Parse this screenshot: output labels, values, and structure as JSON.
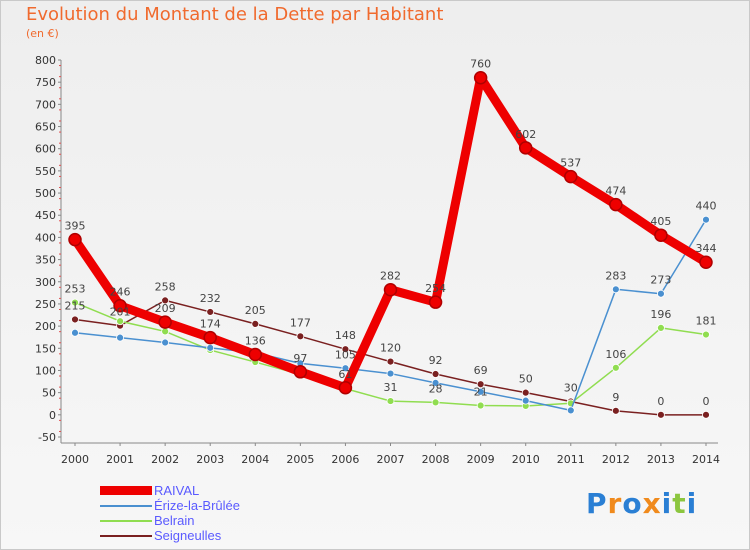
{
  "title": "Evolution du Montant de la Dette par Habitant",
  "subtitle": "(en €)",
  "logo_text": "Proxiti",
  "chart_data": {
    "type": "line",
    "title": "Evolution du Montant de la Dette par Habitant",
    "ylabel": "(en €)",
    "xlabel": "",
    "categories": [
      "2000",
      "2001",
      "2002",
      "2003",
      "2004",
      "2005",
      "2006",
      "2007",
      "2008",
      "2009",
      "2010",
      "2011",
      "2012",
      "2013",
      "2014"
    ],
    "ylim": [
      -50,
      800
    ],
    "yticks": [
      -50,
      0,
      50,
      100,
      150,
      200,
      250,
      300,
      350,
      400,
      450,
      500,
      550,
      600,
      650,
      700,
      750,
      800
    ],
    "grid": false,
    "legend_position": "bottom-left",
    "series": [
      {
        "name": "RAIVAL",
        "color": "#ee0000",
        "values": [
          395,
          246,
          209,
          174,
          136,
          97,
          61,
          282,
          254,
          760,
          602,
          537,
          474,
          405,
          344
        ],
        "labels": [
          "395",
          "246",
          "209",
          "174",
          "136",
          "97",
          "61",
          "282",
          "254",
          "760",
          "602",
          "537",
          "474",
          "405",
          "344"
        ]
      },
      {
        "name": "Érize-la-Brûlée",
        "color": "#4a90d0",
        "values": [
          185,
          174,
          163,
          151,
          140,
          116,
          105,
          93,
          72,
          52,
          32,
          10,
          283,
          273,
          440
        ],
        "labels": [
          "",
          "",
          "",
          "",
          "",
          "",
          "105",
          "",
          "",
          "",
          "",
          "",
          "283",
          "273",
          "440"
        ]
      },
      {
        "name": "Belrain",
        "color": "#90dd50",
        "values": [
          253,
          211,
          188,
          146,
          119,
          91,
          59,
          31,
          28,
          21,
          20,
          26,
          106,
          196,
          181
        ],
        "labels": [
          "253",
          "",
          "",
          "",
          "",
          "",
          "",
          "31",
          "28",
          "21",
          "",
          "",
          "106",
          "196",
          "181"
        ]
      },
      {
        "name": "Seigneulles",
        "color": "#7a2020",
        "values": [
          215,
          201,
          258,
          232,
          205,
          177,
          148,
          120,
          92,
          69,
          50,
          30,
          9,
          0,
          0
        ],
        "labels": [
          "215",
          "201",
          "258",
          "232",
          "205",
          "177",
          "148",
          "120",
          "92",
          "69",
          "50",
          "30",
          "9",
          "0",
          "0"
        ]
      }
    ]
  }
}
